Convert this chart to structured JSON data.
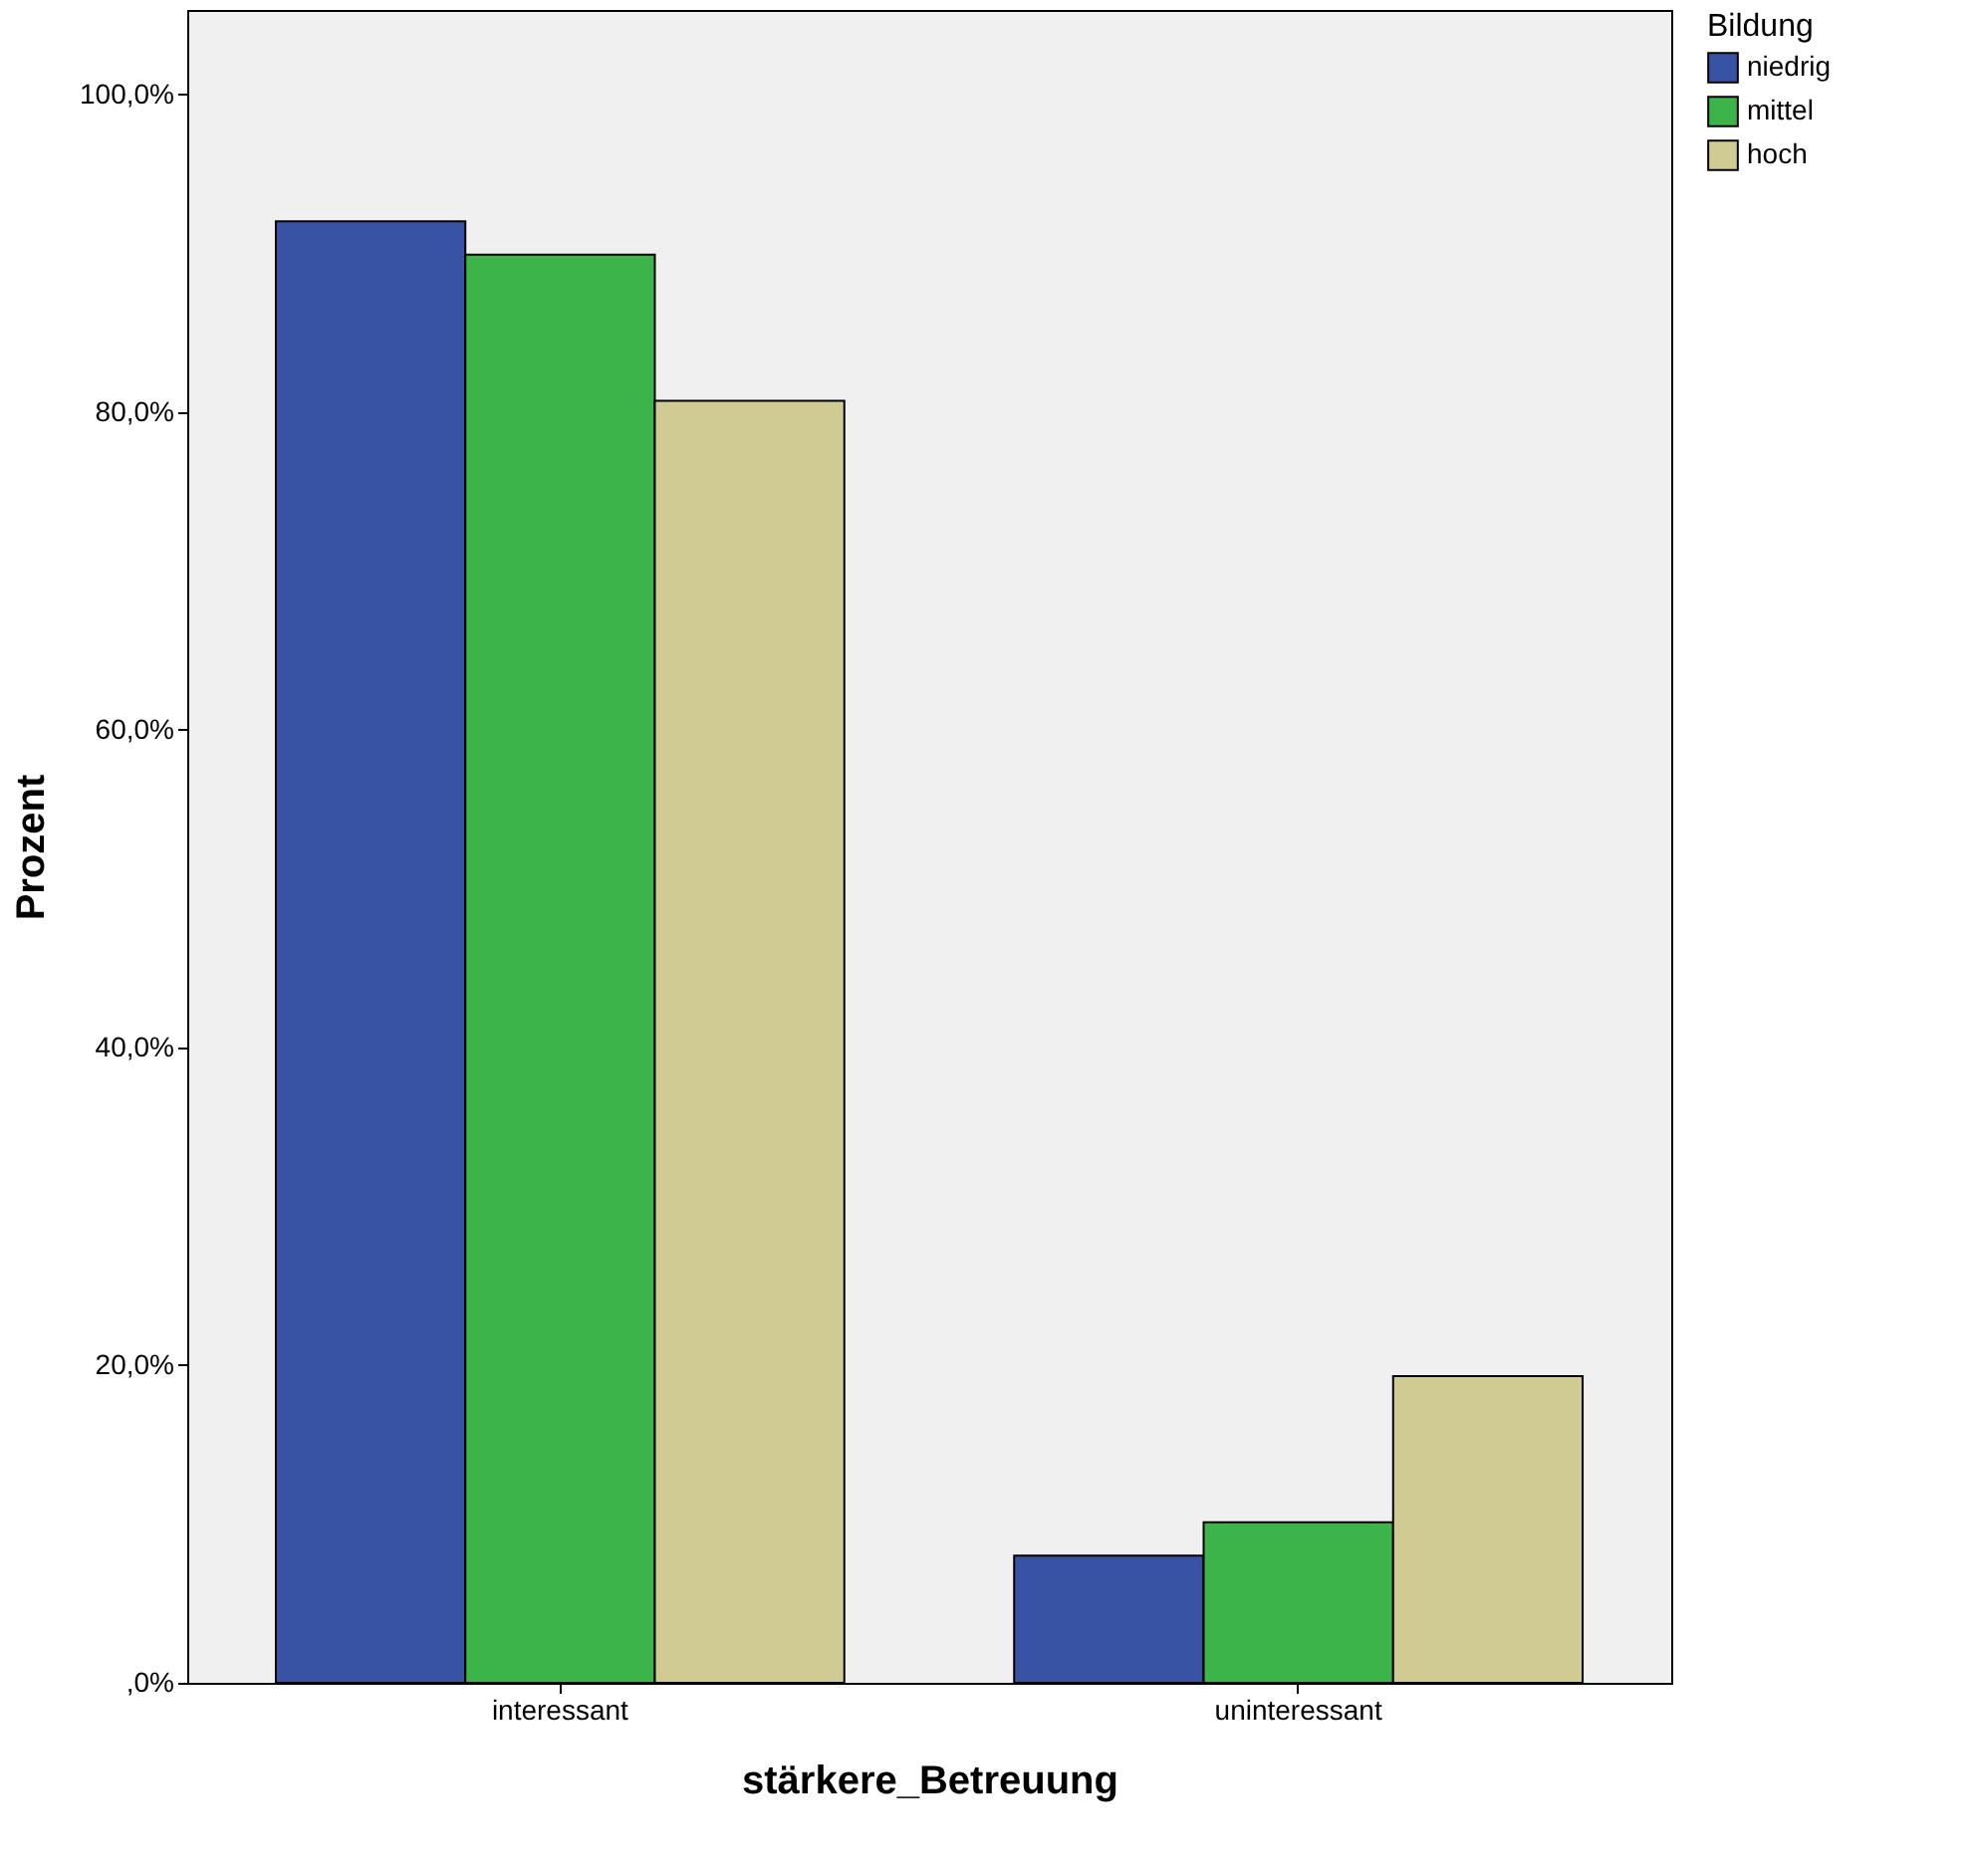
{
  "chart_data": {
    "type": "bar",
    "xlabel": "stärkere_Betreuung",
    "ylabel": "Prozent",
    "legend_title": "Bildung",
    "categories": [
      "interessant",
      "uninteressant"
    ],
    "series": [
      {
        "name": "niedrig",
        "color": "#3953a4",
        "values": [
          92.0,
          8.0
        ]
      },
      {
        "name": "mittel",
        "color": "#3cb44a",
        "values": [
          89.9,
          10.1
        ]
      },
      {
        "name": "hoch",
        "color": "#cfcb93",
        "values": [
          80.7,
          19.3
        ]
      }
    ],
    "ylim": [
      0,
      105.3
    ],
    "yticks": [
      {
        "value": 0,
        "label": ",0%"
      },
      {
        "value": 20,
        "label": "20,0%"
      },
      {
        "value": 40,
        "label": "40,0%"
      },
      {
        "value": 60,
        "label": "60,0%"
      },
      {
        "value": 80,
        "label": "80,0%"
      },
      {
        "value": 100,
        "label": "100,0%"
      }
    ],
    "grid": false,
    "legend": "top right"
  }
}
